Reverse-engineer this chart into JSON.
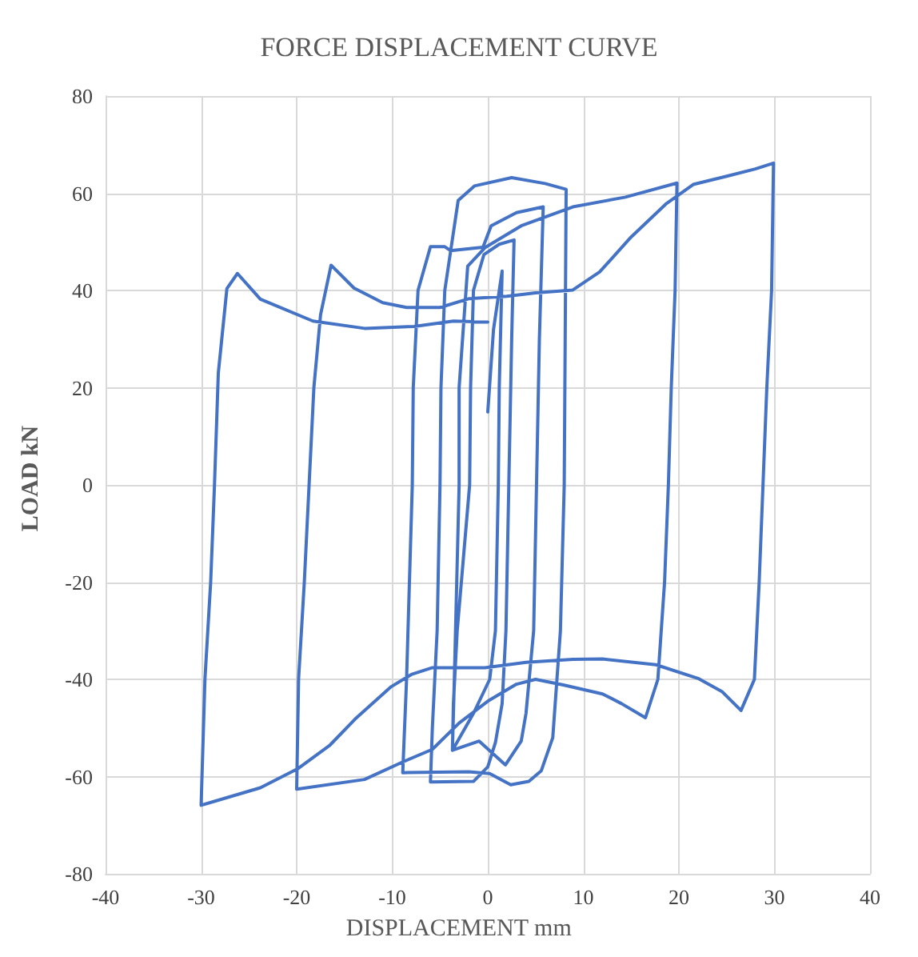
{
  "chart_data": {
    "type": "line",
    "title": "FORCE DISPLACEMENT CURVE",
    "xlabel": "DISPLACEMENT mm",
    "ylabel": "LOAD kN",
    "xlim": [
      -40,
      40
    ],
    "xticks": [
      -40,
      -30,
      -20,
      -10,
      0,
      10,
      20,
      30,
      40
    ],
    "ylim": [
      -80,
      80
    ],
    "yticks": [
      -80,
      -60,
      -40,
      -20,
      0,
      20,
      40,
      60,
      80
    ],
    "grid": true,
    "marker": "none",
    "line_style": "solid",
    "series": [
      {
        "color": "#4472c4",
        "x": [
          0,
          0.6,
          1.5,
          1.2,
          1.1,
          0.8,
          0.2,
          -1.5,
          -3.7,
          -3.6,
          -3.2,
          -1.9,
          -1.8,
          -1.5,
          -0.4,
          1.2,
          2.75,
          2.5,
          2.2,
          1.9,
          1.5,
          0.8,
          0,
          -1.5,
          -6,
          -5.8,
          -5.3,
          -5,
          -4.9,
          -4.5,
          -3.1,
          -1.4,
          2.5,
          6,
          8.2,
          8.1,
          8,
          7.6,
          6.8,
          5.6,
          4.3,
          2.4,
          0.2,
          -2,
          -8.9,
          -8.5,
          -7.9,
          -7.8,
          -7.3,
          -6,
          -4.5,
          -3.9,
          -0.5,
          0.35,
          3,
          5.8,
          5.4,
          5.1,
          4.8,
          4,
          3.5,
          1.85,
          -0.9,
          -3.7,
          -3.5,
          -3,
          -3,
          -2.1,
          -0.3,
          3.5,
          8.9,
          14.4,
          19.8,
          19.6,
          19.2,
          18.9,
          18.5,
          17.8,
          16.5,
          14,
          12,
          8,
          5,
          3,
          0,
          -3,
          -5.8,
          -8.9,
          -12.9,
          -20,
          -19.8,
          -19.2,
          -18.7,
          -18.2,
          -17.5,
          -16.4,
          -14,
          -11,
          -8.5,
          -5,
          -2,
          2,
          5,
          8.9,
          11.7,
          15,
          18.7,
          21.5,
          25,
          28,
          29.9,
          29.7,
          29.2,
          28.8,
          28.4,
          27.9,
          26.5,
          24.5,
          22,
          17.6,
          12,
          8.9,
          4,
          -0.3,
          -5.8,
          -8,
          -10.1,
          -13.9,
          -16.5,
          -19.9,
          -23.8,
          -30,
          -29.6,
          -29,
          -28.6,
          -28.2,
          -27.3,
          -26.2,
          -23.8,
          -18.3,
          -12.9,
          -7.7,
          -3.6,
          0
        ],
        "values": [
          15,
          32,
          44,
          20,
          0,
          -30,
          -40,
          -47,
          -54.6,
          -45,
          -30,
          0,
          20,
          40,
          47.4,
          49.5,
          50.4,
          30,
          0,
          -30,
          -45,
          -53,
          -58,
          -61,
          -61.1,
          -50,
          -30,
          0,
          20,
          40,
          58.5,
          61.5,
          63.2,
          62,
          60.8,
          30,
          0,
          -30,
          -52,
          -58.8,
          -61,
          -61.7,
          -59.4,
          -59,
          -59.2,
          -40,
          0,
          20,
          40,
          49,
          49,
          48.2,
          48.9,
          53.3,
          56,
          57.2,
          30,
          0,
          -30,
          -47,
          -52.7,
          -57.6,
          -52.7,
          -54.6,
          -40,
          0,
          20,
          45,
          48.8,
          53.3,
          57.2,
          59.2,
          62.1,
          40,
          20,
          0,
          -20,
          -40,
          -47.9,
          -45,
          -43,
          -41.2,
          -40,
          -41,
          -44.5,
          -49,
          -54.4,
          -57,
          -60.6,
          -62.6,
          -40,
          -20,
          0,
          20,
          35,
          45.2,
          40.5,
          37.5,
          36.5,
          36.5,
          38.3,
          38.8,
          39.5,
          40.1,
          43.8,
          51,
          57.9,
          61.8,
          63.5,
          65,
          66.2,
          40,
          20,
          0,
          -20,
          -40,
          -46.4,
          -42.5,
          -39.8,
          -37,
          -35.8,
          -35.9,
          -36.5,
          -37.6,
          -37.6,
          -39,
          -41.5,
          -48.2,
          -53.5,
          -58.4,
          -62.3,
          -65.9,
          -40,
          -20,
          0,
          23,
          40.4,
          43.5,
          38.2,
          33.7,
          32.2,
          32.6,
          33.7,
          33.5
        ]
      }
    ]
  }
}
